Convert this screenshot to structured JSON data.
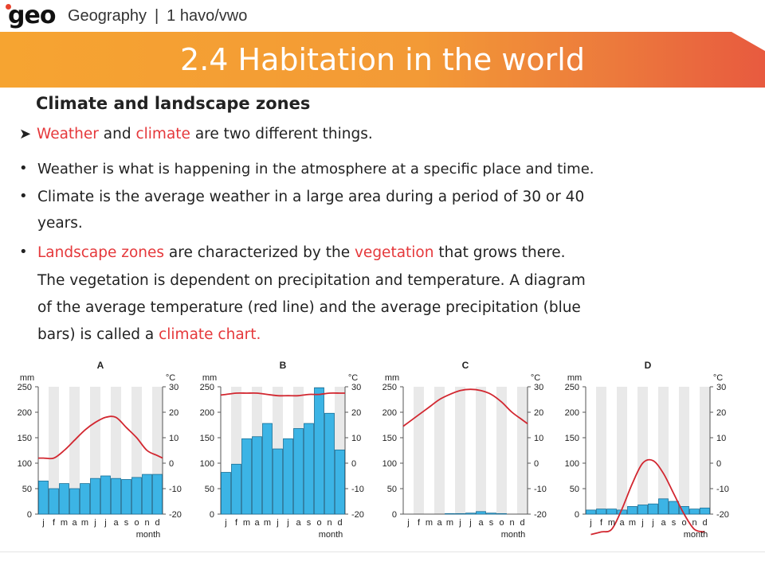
{
  "brand": {
    "logo": "geo",
    "subject": "Geography",
    "separator": "|",
    "level": "1 havo/vwo"
  },
  "slide": {
    "title": "2.4 Habitation in the world",
    "subtitle": "Climate and landscape zones"
  },
  "text": {
    "p1": {
      "a": "Weather",
      "b": " and ",
      "c": "climate",
      "d": " are two different things."
    },
    "b1": "Weather is what is happening in the atmosphere at a specific place and time.",
    "b2_l1": "Climate is the average weather in a large area during a period of 30 or 40",
    "b2_l2": "years.",
    "b3_a": "Landscape zones",
    "b3_b": " are characterized by the ",
    "b3_c": "vegetation",
    "b3_d": " that grows there.",
    "b3_l2": "The vegetation is dependent on precipitation and temperature. A diagram",
    "b3_l3": "of the average temperature (red line) and the average precipitation (blue",
    "b3_l4a": "bars) is called a ",
    "b3_l4b": "climate chart."
  },
  "colors": {
    "bar": "#3cb4e5",
    "line": "#d22730",
    "accent_red": "#e5383b",
    "band": "#e9e9e9"
  },
  "chart_data": [
    {
      "type": "bar+line",
      "title": "A",
      "left_unit": "mm",
      "right_unit": "°C",
      "xlabel": "month",
      "categories": [
        "j",
        "f",
        "m",
        "a",
        "m",
        "j",
        "j",
        "a",
        "s",
        "o",
        "n",
        "d"
      ],
      "precip_ylim": [
        0,
        250
      ],
      "precip_ticks": [
        0,
        50,
        100,
        150,
        200,
        250
      ],
      "temp_ylim": [
        -20,
        30
      ],
      "temp_ticks": [
        -20,
        -10,
        0,
        10,
        20,
        30
      ],
      "series": [
        {
          "values": [
            65,
            50,
            60,
            50,
            60,
            70,
            75,
            70,
            68,
            72,
            78,
            78
          ]
        },
        {
          "values": [
            2,
            2,
            5,
            9,
            13,
            16,
            18,
            18,
            14,
            10,
            5,
            3
          ]
        }
      ]
    },
    {
      "type": "bar+line",
      "title": "B",
      "left_unit": "mm",
      "right_unit": "°C",
      "xlabel": "month",
      "categories": [
        "j",
        "f",
        "m",
        "a",
        "m",
        "j",
        "j",
        "a",
        "s",
        "o",
        "n",
        "d"
      ],
      "precip_ylim": [
        0,
        250
      ],
      "precip_ticks": [
        0,
        50,
        100,
        150,
        200,
        250
      ],
      "temp_ylim": [
        -20,
        30
      ],
      "temp_ticks": [
        -20,
        -10,
        0,
        10,
        20,
        30
      ],
      "series": [
        {
          "values": [
            82,
            98,
            148,
            152,
            178,
            128,
            148,
            168,
            178,
            248,
            198,
            126
          ]
        },
        {
          "values": [
            27,
            27.5,
            27.5,
            27.5,
            27,
            26.5,
            26.5,
            26.5,
            27,
            27,
            27.5,
            27.5
          ]
        }
      ]
    },
    {
      "type": "bar+line",
      "title": "C",
      "left_unit": "mm",
      "right_unit": "°C",
      "xlabel": "month",
      "categories": [
        "j",
        "f",
        "m",
        "a",
        "m",
        "j",
        "j",
        "a",
        "s",
        "o",
        "n",
        "d"
      ],
      "precip_ylim": [
        0,
        250
      ],
      "precip_ticks": [
        0,
        50,
        100,
        150,
        200,
        250
      ],
      "temp_ylim": [
        -20,
        30
      ],
      "temp_ticks": [
        -20,
        -10,
        0,
        10,
        20,
        30
      ],
      "series": [
        {
          "values": [
            0,
            0,
            0,
            0,
            1,
            1,
            2,
            5,
            2,
            1,
            0,
            0
          ]
        },
        {
          "values": [
            16,
            19,
            22,
            25,
            27,
            28.5,
            29,
            28.5,
            27,
            24,
            20,
            17
          ]
        }
      ]
    },
    {
      "type": "bar+line",
      "title": "D",
      "left_unit": "mm",
      "right_unit": "°C",
      "xlabel": "month",
      "categories": [
        "j",
        "f",
        "m",
        "a",
        "m",
        "j",
        "j",
        "a",
        "s",
        "o",
        "n",
        "d"
      ],
      "precip_ylim": [
        0,
        250
      ],
      "precip_ticks": [
        0,
        50,
        100,
        150,
        200,
        250
      ],
      "temp_ylim": [
        -20,
        30
      ],
      "temp_ticks": [
        -20,
        -10,
        0,
        10,
        20,
        30
      ],
      "series": [
        {
          "values": [
            8,
            10,
            10,
            8,
            15,
            18,
            20,
            30,
            25,
            15,
            10,
            12
          ]
        },
        {
          "values": [
            -28,
            -27,
            -26,
            -18,
            -8,
            0,
            1,
            -4,
            -12,
            -20,
            -26,
            -27
          ]
        }
      ]
    }
  ]
}
